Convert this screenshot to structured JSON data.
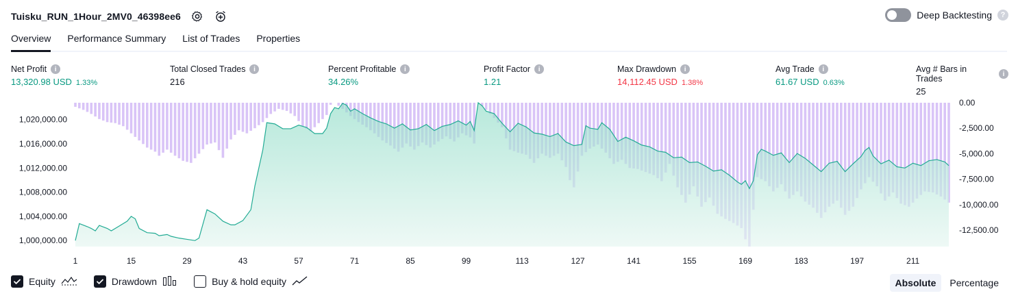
{
  "header": {
    "strategy_title": "Tuisku_RUN_1Hour_2MV0_46398ee6",
    "deep_backtesting_label": "Deep Backtesting",
    "deep_backtesting_enabled": false
  },
  "tabs": [
    {
      "label": "Overview",
      "active": true
    },
    {
      "label": "Performance Summary",
      "active": false
    },
    {
      "label": "List of Trades",
      "active": false
    },
    {
      "label": "Properties",
      "active": false
    }
  ],
  "metrics": [
    {
      "label": "Net Profit",
      "value": "13,320.98 USD",
      "pct": "1.33%",
      "color": "green"
    },
    {
      "label": "Total Closed Trades",
      "value": "216",
      "pct": "",
      "color": "dark"
    },
    {
      "label": "Percent Profitable",
      "value": "34.26%",
      "pct": "",
      "color": "green"
    },
    {
      "label": "Profit Factor",
      "value": "1.21",
      "pct": "",
      "color": "green"
    },
    {
      "label": "Max Drawdown",
      "value": "14,112.45 USD",
      "pct": "1.38%",
      "color": "red"
    },
    {
      "label": "Avg Trade",
      "value": "61.67 USD",
      "pct": "0.63%",
      "color": "green"
    },
    {
      "label": "Avg # Bars in Trades",
      "value": "25",
      "pct": "",
      "color": "dark"
    }
  ],
  "chart_data": {
    "type": "area",
    "x_ticks": [
      1,
      15,
      29,
      43,
      57,
      71,
      85,
      99,
      113,
      127,
      141,
      155,
      169,
      183,
      197,
      211
    ],
    "left_axis": {
      "label": "Equity",
      "ticks": [
        "1,000,000.00",
        "1,004,000.00",
        "1,008,000.00",
        "1,012,000.00",
        "1,016,000.00",
        "1,020,000.00"
      ],
      "range": [
        999000,
        1022800
      ]
    },
    "right_axis": {
      "label": "Drawdown",
      "ticks": [
        "0.00",
        "-2,500.00",
        "-5,000.00",
        "-7,500.00",
        "-10,000.00",
        "-12,500.00"
      ],
      "range": [
        -14112.45,
        0
      ]
    },
    "equity_anchors": [
      [
        1,
        1000000
      ],
      [
        2,
        1002800
      ],
      [
        4,
        1002300
      ],
      [
        5,
        1002000
      ],
      [
        6,
        1001600
      ],
      [
        7,
        1002500
      ],
      [
        9,
        1002000
      ],
      [
        10,
        1001600
      ],
      [
        12,
        1002400
      ],
      [
        14,
        1003200
      ],
      [
        15,
        1004000
      ],
      [
        16,
        1003600
      ],
      [
        17,
        1002000
      ],
      [
        19,
        1001300
      ],
      [
        21,
        1001200
      ],
      [
        22,
        1000800
      ],
      [
        24,
        1001000
      ],
      [
        25,
        1000700
      ],
      [
        27,
        1000400
      ],
      [
        29,
        1000200
      ],
      [
        30,
        1000100
      ],
      [
        31,
        1000000
      ],
      [
        32,
        1000400
      ],
      [
        34,
        1005100
      ],
      [
        36,
        1004400
      ],
      [
        38,
        1003200
      ],
      [
        40,
        1002600
      ],
      [
        41,
        1002600
      ],
      [
        43,
        1003300
      ],
      [
        45,
        1005100
      ],
      [
        46,
        1009000
      ],
      [
        47,
        1012000
      ],
      [
        48,
        1015000
      ],
      [
        49,
        1019500
      ],
      [
        51,
        1019300
      ],
      [
        53,
        1018500
      ],
      [
        55,
        1018500
      ],
      [
        57,
        1019100
      ],
      [
        59,
        1018700
      ],
      [
        61,
        1017700
      ],
      [
        63,
        1017700
      ],
      [
        64,
        1018600
      ],
      [
        65,
        1021000
      ],
      [
        66,
        1022000
      ],
      [
        67,
        1021800
      ],
      [
        68,
        1022700
      ],
      [
        69,
        1022400
      ],
      [
        70,
        1021400
      ],
      [
        71,
        1021800
      ],
      [
        73,
        1021000
      ],
      [
        75,
        1020300
      ],
      [
        77,
        1019700
      ],
      [
        79,
        1019300
      ],
      [
        81,
        1018600
      ],
      [
        83,
        1019300
      ],
      [
        85,
        1018300
      ],
      [
        87,
        1018500
      ],
      [
        89,
        1019200
      ],
      [
        91,
        1018200
      ],
      [
        93,
        1018900
      ],
      [
        95,
        1019200
      ],
      [
        97,
        1019800
      ],
      [
        99,
        1019100
      ],
      [
        100,
        1019700
      ],
      [
        101,
        1018200
      ],
      [
        102,
        1022800
      ],
      [
        103,
        1022300
      ],
      [
        104,
        1021400
      ],
      [
        106,
        1021000
      ],
      [
        108,
        1019400
      ],
      [
        110,
        1018000
      ],
      [
        112,
        1019400
      ],
      [
        114,
        1018800
      ],
      [
        116,
        1017800
      ],
      [
        118,
        1017600
      ],
      [
        120,
        1017200
      ],
      [
        122,
        1017700
      ],
      [
        124,
        1016300
      ],
      [
        126,
        1015700
      ],
      [
        128,
        1015900
      ],
      [
        129,
        1019000
      ],
      [
        130,
        1018600
      ],
      [
        132,
        1018400
      ],
      [
        133,
        1019500
      ],
      [
        135,
        1018400
      ],
      [
        137,
        1016400
      ],
      [
        139,
        1017100
      ],
      [
        141,
        1016500
      ],
      [
        143,
        1015800
      ],
      [
        145,
        1015500
      ],
      [
        147,
        1014800
      ],
      [
        149,
        1014600
      ],
      [
        151,
        1013700
      ],
      [
        153,
        1013800
      ],
      [
        155,
        1012900
      ],
      [
        157,
        1013000
      ],
      [
        159,
        1012300
      ],
      [
        161,
        1011500
      ],
      [
        163,
        1011700
      ],
      [
        165,
        1010800
      ],
      [
        167,
        1009700
      ],
      [
        168,
        1009300
      ],
      [
        169,
        1009900
      ],
      [
        170,
        1008600
      ],
      [
        171,
        1009900
      ],
      [
        172,
        1014200
      ],
      [
        173,
        1015100
      ],
      [
        174,
        1014800
      ],
      [
        176,
        1014100
      ],
      [
        178,
        1014500
      ],
      [
        180,
        1012900
      ],
      [
        182,
        1014400
      ],
      [
        184,
        1013600
      ],
      [
        186,
        1012500
      ],
      [
        188,
        1011400
      ],
      [
        190,
        1012800
      ],
      [
        192,
        1013100
      ],
      [
        194,
        1011400
      ],
      [
        196,
        1012700
      ],
      [
        198,
        1013900
      ],
      [
        199,
        1014900
      ],
      [
        200,
        1015400
      ],
      [
        201,
        1014000
      ],
      [
        203,
        1012700
      ],
      [
        205,
        1013300
      ],
      [
        207,
        1012200
      ],
      [
        209,
        1012000
      ],
      [
        211,
        1012800
      ],
      [
        213,
        1012400
      ],
      [
        215,
        1013200
      ],
      [
        217,
        1013400
      ],
      [
        219,
        1013000
      ],
      [
        220,
        1012400
      ]
    ],
    "drawdown_anchors": [
      [
        1,
        -400
      ],
      [
        3,
        -700
      ],
      [
        5,
        -1100
      ],
      [
        7,
        -1600
      ],
      [
        9,
        -1900
      ],
      [
        11,
        -2000
      ],
      [
        13,
        -2300
      ],
      [
        15,
        -3000
      ],
      [
        17,
        -3700
      ],
      [
        19,
        -4400
      ],
      [
        21,
        -4800
      ],
      [
        22,
        -5200
      ],
      [
        24,
        -4600
      ],
      [
        26,
        -5200
      ],
      [
        28,
        -5700
      ],
      [
        30,
        -5900
      ],
      [
        32,
        -5000
      ],
      [
        34,
        -4100
      ],
      [
        36,
        -3900
      ],
      [
        38,
        -5400
      ],
      [
        40,
        -3600
      ],
      [
        42,
        -2700
      ],
      [
        44,
        -3000
      ],
      [
        46,
        -2500
      ],
      [
        48,
        -1900
      ],
      [
        50,
        -1100
      ],
      [
        52,
        -600
      ],
      [
        54,
        -800
      ],
      [
        56,
        -1300
      ],
      [
        58,
        -2300
      ],
      [
        60,
        -2800
      ],
      [
        62,
        -2000
      ],
      [
        64,
        -1200
      ],
      [
        65,
        -200
      ],
      [
        66,
        0
      ],
      [
        68,
        -600
      ],
      [
        70,
        -1300
      ],
      [
        72,
        -1900
      ],
      [
        74,
        -2400
      ],
      [
        76,
        -3000
      ],
      [
        78,
        -3700
      ],
      [
        80,
        -4200
      ],
      [
        82,
        -4800
      ],
      [
        84,
        -4000
      ],
      [
        86,
        -4600
      ],
      [
        88,
        -3900
      ],
      [
        90,
        -4400
      ],
      [
        92,
        -3800
      ],
      [
        94,
        -3300
      ],
      [
        96,
        -3800
      ],
      [
        98,
        -3000
      ],
      [
        100,
        -3400
      ],
      [
        101,
        -4000
      ],
      [
        102,
        0
      ],
      [
        104,
        -700
      ],
      [
        106,
        -1500
      ],
      [
        108,
        -2400
      ],
      [
        110,
        -4600
      ],
      [
        112,
        -4900
      ],
      [
        114,
        -5100
      ],
      [
        116,
        -5900
      ],
      [
        118,
        -5000
      ],
      [
        120,
        -5400
      ],
      [
        122,
        -5000
      ],
      [
        124,
        -6300
      ],
      [
        125,
        -7600
      ],
      [
        126,
        -8300
      ],
      [
        128,
        -5200
      ],
      [
        130,
        -4500
      ],
      [
        132,
        -4100
      ],
      [
        134,
        -4900
      ],
      [
        136,
        -6000
      ],
      [
        138,
        -5600
      ],
      [
        140,
        -6400
      ],
      [
        142,
        -6500
      ],
      [
        144,
        -6800
      ],
      [
        146,
        -7100
      ],
      [
        148,
        -7700
      ],
      [
        150,
        -6000
      ],
      [
        152,
        -8300
      ],
      [
        154,
        -9800
      ],
      [
        156,
        -8200
      ],
      [
        158,
        -10200
      ],
      [
        160,
        -9300
      ],
      [
        162,
        -10900
      ],
      [
        164,
        -11400
      ],
      [
        166,
        -11800
      ],
      [
        168,
        -12300
      ],
      [
        169,
        -13400
      ],
      [
        170,
        -14112
      ],
      [
        171,
        -10500
      ],
      [
        172,
        -7300
      ],
      [
        174,
        -7700
      ],
      [
        176,
        -8700
      ],
      [
        178,
        -8000
      ],
      [
        180,
        -9400
      ],
      [
        182,
        -8700
      ],
      [
        184,
        -9700
      ],
      [
        186,
        -10300
      ],
      [
        188,
        -11300
      ],
      [
        190,
        -10200
      ],
      [
        192,
        -9600
      ],
      [
        194,
        -11000
      ],
      [
        196,
        -10200
      ],
      [
        198,
        -8500
      ],
      [
        200,
        -7300
      ],
      [
        202,
        -8200
      ],
      [
        204,
        -9600
      ],
      [
        206,
        -8800
      ],
      [
        208,
        -9900
      ],
      [
        210,
        -10200
      ],
      [
        212,
        -9400
      ],
      [
        214,
        -8700
      ],
      [
        216,
        -8800
      ],
      [
        218,
        -9200
      ],
      [
        220,
        -9800
      ]
    ]
  },
  "legend": {
    "equity": {
      "label": "Equity",
      "checked": true
    },
    "drawdown": {
      "label": "Drawdown",
      "checked": true
    },
    "buy_hold": {
      "label": "Buy & hold equity",
      "checked": false
    }
  },
  "mode": {
    "absolute": "Absolute",
    "percentage": "Percentage",
    "active": "absolute"
  },
  "colors": {
    "equity_line": "#22ab94",
    "drawdown_bar": "#d9c4f7",
    "up": "#089981",
    "down": "#f23645"
  }
}
